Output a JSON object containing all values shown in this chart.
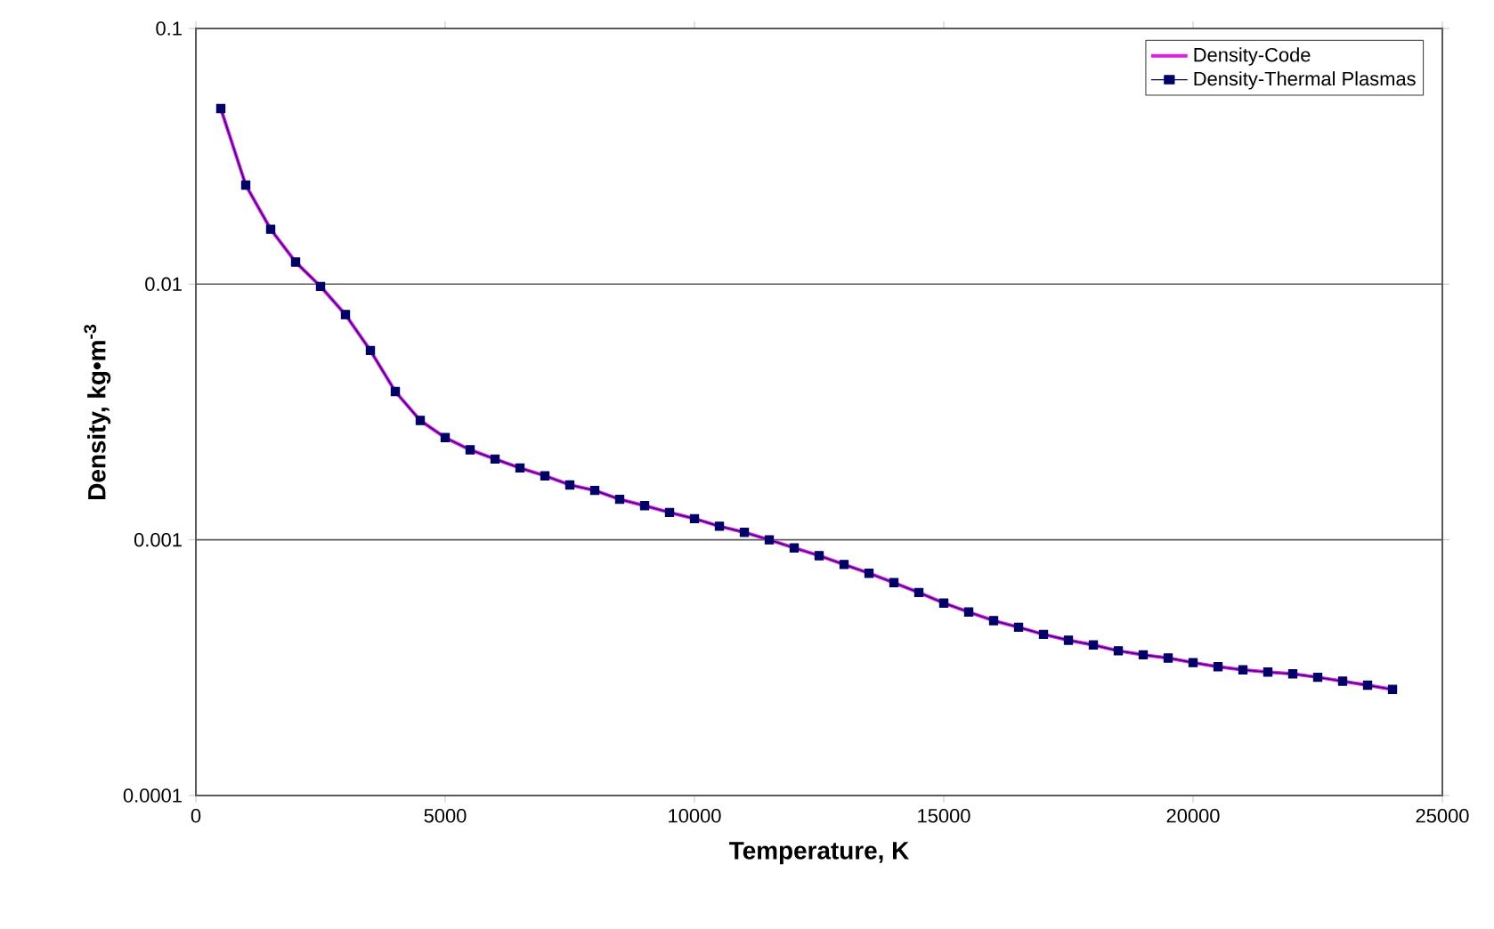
{
  "chart_data": {
    "type": "line",
    "xlabel": "Temperature, K",
    "ylabel": "Density, kg•m$^{-3}$",
    "log": "y",
    "grid": "y",
    "legend": "top right",
    "xlim": [
      0,
      25000
    ],
    "xticks": [
      0,
      5000,
      10000,
      15000,
      20000,
      25000
    ],
    "ylim": [
      0.0001,
      0.1
    ],
    "yticks": [
      0.0001,
      0.001,
      0.01,
      0.1
    ],
    "x": [
      500,
      1000,
      1500,
      2000,
      2500,
      3000,
      3500,
      4000,
      4500,
      5000,
      5500,
      6000,
      6500,
      7000,
      7500,
      8000,
      8500,
      9000,
      9500,
      10000,
      10500,
      11000,
      11500,
      12000,
      12500,
      13000,
      13500,
      14000,
      14500,
      15000,
      15500,
      16000,
      16500,
      17000,
      17500,
      18000,
      18500,
      19000,
      19500,
      20000,
      20500,
      21000,
      21500,
      22000,
      22500,
      23000,
      23500,
      24000
    ],
    "series": [
      {
        "name": "Density-Code",
        "color": "#e020e0",
        "marker": "none",
        "values": [
          0.0486,
          0.0244,
          0.0164,
          0.0122,
          0.0098,
          0.0076,
          0.0055,
          0.0038,
          0.00293,
          0.00251,
          0.00225,
          0.00207,
          0.00191,
          0.00178,
          0.00164,
          0.00156,
          0.00144,
          0.00136,
          0.00128,
          0.00121,
          0.00113,
          0.00107,
          0.001,
          0.00093,
          0.000867,
          0.000801,
          0.00074,
          0.00068,
          0.000622,
          0.000566,
          0.000522,
          0.000483,
          0.000455,
          0.000427,
          0.000405,
          0.000388,
          0.000368,
          0.000355,
          0.000345,
          0.000331,
          0.000319,
          0.00031,
          0.000304,
          0.000299,
          0.00029,
          0.00028,
          0.00027,
          0.00026
        ]
      },
      {
        "name": "Density-Thermal Plasmas",
        "color": "#000066",
        "marker": "square",
        "values": [
          0.0486,
          0.0244,
          0.0164,
          0.0122,
          0.0098,
          0.0076,
          0.0055,
          0.0038,
          0.00293,
          0.00251,
          0.00225,
          0.00207,
          0.00191,
          0.00178,
          0.00164,
          0.00156,
          0.00144,
          0.00136,
          0.00128,
          0.00121,
          0.00113,
          0.00107,
          0.001,
          0.00093,
          0.000867,
          0.000801,
          0.00074,
          0.00068,
          0.000622,
          0.000566,
          0.000522,
          0.000483,
          0.000455,
          0.000427,
          0.000405,
          0.000388,
          0.000368,
          0.000355,
          0.000345,
          0.000331,
          0.000319,
          0.00031,
          0.000304,
          0.000299,
          0.00029,
          0.00028,
          0.00027,
          0.00026
        ]
      }
    ]
  }
}
